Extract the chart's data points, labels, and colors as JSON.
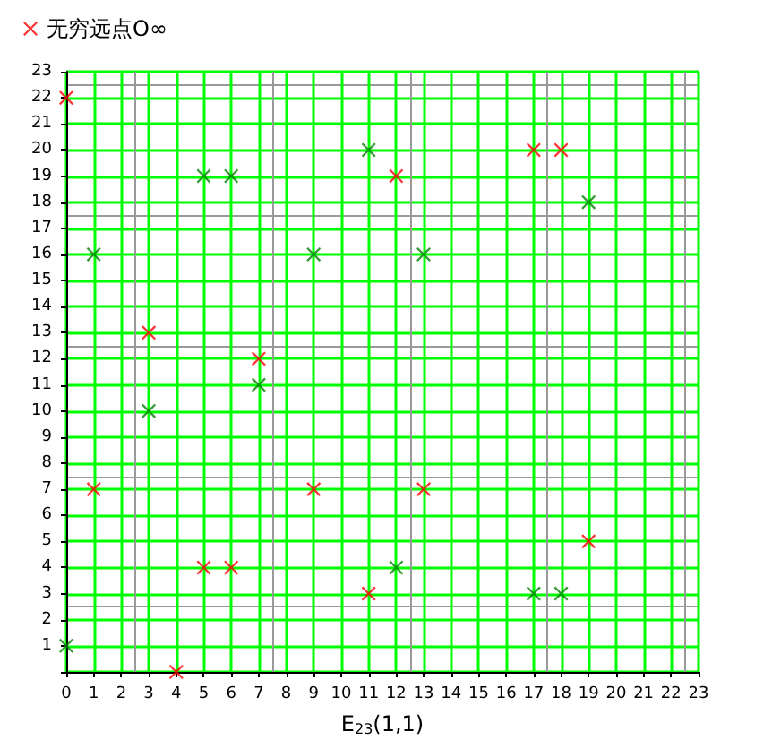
{
  "chart_data": {
    "type": "scatter",
    "xlabel": "E$_{23}$(1,1)",
    "xlim": [
      0,
      23
    ],
    "xticks": [
      0,
      1,
      2,
      3,
      4,
      5,
      6,
      7,
      8,
      9,
      10,
      11,
      12,
      13,
      14,
      15,
      16,
      17,
      18,
      19,
      20,
      21,
      22,
      23
    ],
    "ylim": [
      0,
      23
    ],
    "yticks": [
      {
        "value": 0,
        "label": null
      },
      1,
      2,
      3,
      4,
      5,
      6,
      7,
      8,
      9,
      10,
      11,
      12,
      13,
      14,
      15,
      16,
      17,
      18,
      19,
      20,
      21,
      22,
      23
    ],
    "grid": true,
    "legend": "top left",
    "marker": "cross",
    "series": [
      {
        "name": "无穷远点O∞",
        "color": "#ff0000",
        "x": [
          0,
          1,
          3,
          4,
          5,
          6,
          7,
          9,
          11,
          12,
          13,
          17,
          18,
          19
        ],
        "values": [
          22,
          7,
          13,
          0,
          4,
          4,
          12,
          7,
          3,
          19,
          7,
          20,
          20,
          5
        ]
      },
      {
        "color": "#008000",
        "x": [
          0,
          1,
          3,
          5,
          6,
          7,
          9,
          11,
          12,
          13,
          17,
          18,
          19
        ],
        "values": [
          1,
          16,
          10,
          19,
          19,
          11,
          16,
          20,
          4,
          16,
          3,
          3,
          18
        ]
      }
    ]
  }
}
